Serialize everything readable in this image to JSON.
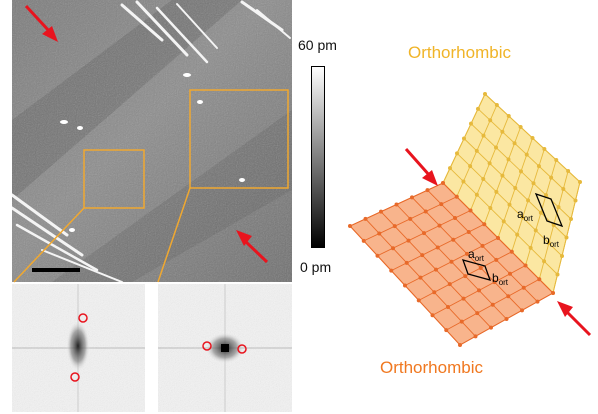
{
  "colorbar": {
    "max_label": "60 pm",
    "min_label": "0 pm"
  },
  "labels": {
    "top_phase": "Orthorhombic",
    "bottom_phase": "Orthorhombic",
    "yellow_a": "a",
    "yellow_a_sub": "ort",
    "yellow_b": "b",
    "yellow_b_sub": "ort",
    "orange_a": "a",
    "orange_a_sub": "ort",
    "orange_b": "b",
    "orange_b_sub": "ort"
  },
  "colors": {
    "yellow_fill": "#fbe7a2",
    "yellow_line": "#e6b93c",
    "orange_fill": "#f8b48c",
    "orange_line": "#e86a2a",
    "top_label": "#f0b428",
    "bottom_label": "#f07820",
    "arrow": "#e8141e",
    "box": "#f0a830"
  }
}
